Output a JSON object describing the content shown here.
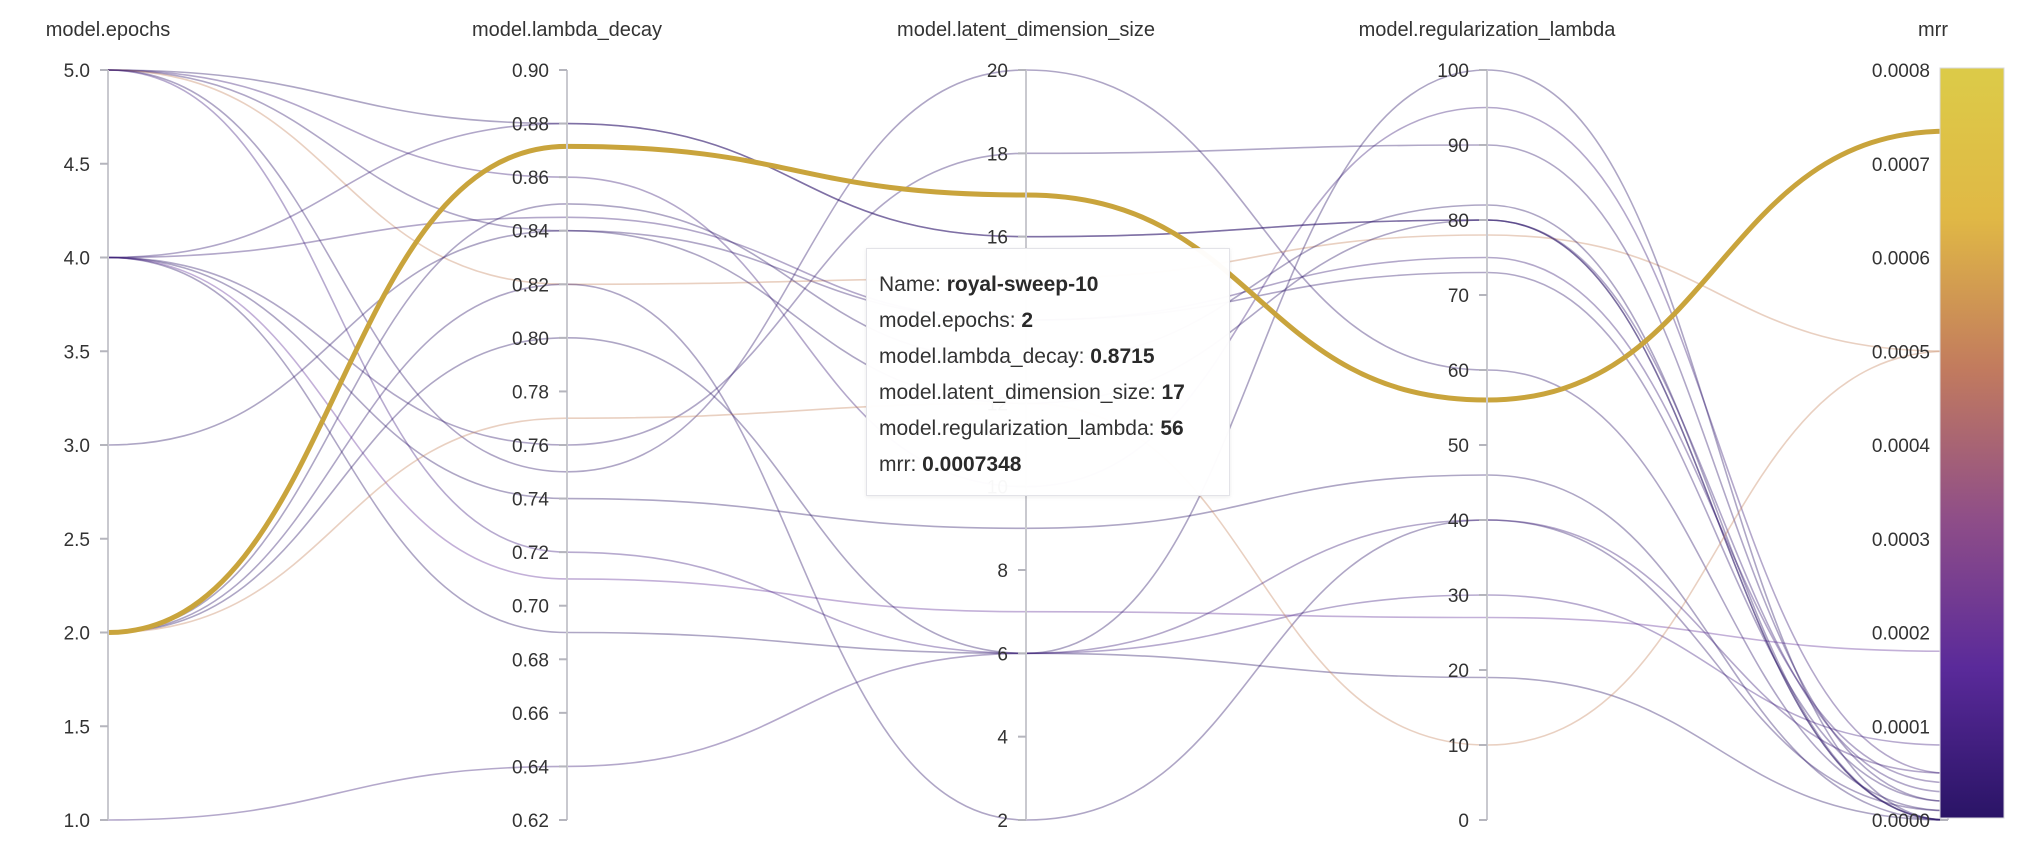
{
  "chart_data": {
    "type": "parallel-coordinates",
    "axes": [
      {
        "key": "epochs",
        "label": "model.epochs",
        "range": [
          1.0,
          5.0
        ],
        "ticks": [
          "1.0",
          "1.5",
          "2.0",
          "2.5",
          "3.0",
          "3.5",
          "4.0",
          "4.5",
          "5.0"
        ]
      },
      {
        "key": "lambda",
        "label": "model.lambda_decay",
        "range": [
          0.62,
          0.9
        ],
        "ticks": [
          "0.62",
          "0.64",
          "0.66",
          "0.68",
          "0.70",
          "0.72",
          "0.74",
          "0.76",
          "0.78",
          "0.80",
          "0.82",
          "0.84",
          "0.86",
          "0.88",
          "0.90"
        ]
      },
      {
        "key": "latent",
        "label": "model.latent_dimension_size",
        "range": [
          2,
          20
        ],
        "ticks": [
          "2",
          "4",
          "6",
          "8",
          "10",
          "12",
          "14",
          "16",
          "18",
          "20"
        ]
      },
      {
        "key": "reg",
        "label": "model.regularization_lambda",
        "range": [
          0,
          100
        ],
        "ticks": [
          "0",
          "10",
          "20",
          "30",
          "40",
          "50",
          "60",
          "70",
          "80",
          "90",
          "100"
        ]
      },
      {
        "key": "mrr",
        "label": "mrr",
        "range": [
          0.0,
          0.0008
        ],
        "ticks": [
          "0.0000",
          "0.0001",
          "0.0002",
          "0.0003",
          "0.0004",
          "0.0005",
          "0.0006",
          "0.0007",
          "0.0008"
        ]
      }
    ],
    "colorscale": {
      "axis": "mrr",
      "colors": [
        "#2a1466",
        "#5a2a9a",
        "#8f4e88",
        "#c27b5e",
        "#e0b845",
        "#dccb48"
      ]
    },
    "runs": [
      {
        "epochs": 2,
        "lambda": 0.8715,
        "latent": 17,
        "reg": 56,
        "mrr": 0.0007348,
        "highlight": true
      },
      {
        "epochs": 5,
        "lambda": 0.88,
        "latent": 16,
        "reg": 80,
        "mrr": 0.0
      },
      {
        "epochs": 5,
        "lambda": 0.86,
        "latent": 10,
        "reg": 95,
        "mrr": 5e-05
      },
      {
        "epochs": 5,
        "lambda": 0.84,
        "latent": 14,
        "reg": 73,
        "mrr": 2e-05
      },
      {
        "epochs": 5,
        "lambda": 0.82,
        "latent": 15,
        "reg": 78,
        "mrr": 0.0005
      },
      {
        "epochs": 5,
        "lambda": 0.75,
        "latent": 20,
        "reg": 60,
        "mrr": 1e-05
      },
      {
        "epochs": 5,
        "lambda": 0.72,
        "latent": 6,
        "reg": 30,
        "mrr": 8e-05
      },
      {
        "epochs": 4,
        "lambda": 0.88,
        "latent": 16,
        "reg": 80,
        "mrr": 3e-05
      },
      {
        "epochs": 4,
        "lambda": 0.845,
        "latent": 14,
        "reg": 75,
        "mrr": 4e-05
      },
      {
        "epochs": 4,
        "lambda": 0.76,
        "latent": 18,
        "reg": 90,
        "mrr": 2e-05
      },
      {
        "epochs": 4,
        "lambda": 0.74,
        "latent": 9,
        "reg": 46,
        "mrr": 0.0
      },
      {
        "epochs": 4,
        "lambda": 0.71,
        "latent": 7,
        "reg": 27,
        "mrr": 0.00018
      },
      {
        "epochs": 4,
        "lambda": 0.69,
        "latent": 6,
        "reg": 19,
        "mrr": 0.0
      },
      {
        "epochs": 3,
        "lambda": 0.84,
        "latent": 12,
        "reg": 80,
        "mrr": 0.0
      },
      {
        "epochs": 2,
        "lambda": 0.85,
        "latent": 13,
        "reg": 82,
        "mrr": 0.0
      },
      {
        "epochs": 2,
        "lambda": 0.82,
        "latent": 2,
        "reg": 40,
        "mrr": 1e-05
      },
      {
        "epochs": 2,
        "lambda": 0.8,
        "latent": 6,
        "reg": 100,
        "mrr": 0.0
      },
      {
        "epochs": 2,
        "lambda": 0.77,
        "latent": 12,
        "reg": 10,
        "mrr": 0.0005
      },
      {
        "epochs": 1,
        "lambda": 0.64,
        "latent": 6,
        "reg": 40,
        "mrr": 5e-05
      }
    ]
  },
  "tooltip": {
    "name_label": "Name: ",
    "name_value": "royal-sweep-10",
    "epochs_label": "model.epochs: ",
    "epochs_value": "2",
    "lambda_label": "model.lambda_decay: ",
    "lambda_value": "0.8715",
    "latent_label": "model.latent_dimension_size: ",
    "latent_value": "17",
    "reg_label": "model.regularization_lambda: ",
    "reg_value": "56",
    "mrr_label": "mrr: ",
    "mrr_value": "0.0007348"
  }
}
